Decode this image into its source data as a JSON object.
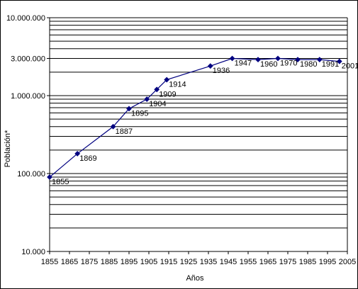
{
  "chart_data": {
    "type": "line",
    "title": "",
    "xlabel": "Años",
    "ylabel": "Población*",
    "y_scale": "log",
    "ylim": [
      10000,
      10000000
    ],
    "xlim": [
      1855,
      2005
    ],
    "x_ticks": [
      "1855",
      "1865",
      "1875",
      "1885",
      "1895",
      "1905",
      "1915",
      "1925",
      "1935",
      "1945",
      "1955",
      "1965",
      "1975",
      "1985",
      "1995",
      "2005"
    ],
    "y_tick_labels": [
      {
        "value": 10000000,
        "label": "10.000.000"
      },
      {
        "value": 3000000,
        "label": "3.000.000"
      },
      {
        "value": 1000000,
        "label": "1.000.000"
      },
      {
        "value": 100000,
        "label": "100.000"
      },
      {
        "value": 10000,
        "label": "10.000"
      }
    ],
    "grid": true,
    "legend": "none",
    "series": [
      {
        "color": "#000080",
        "points": [
          {
            "x": 1855,
            "y": 90000,
            "label": "1855"
          },
          {
            "x": 1869,
            "y": 180000,
            "label": "1869"
          },
          {
            "x": 1887,
            "y": 400000,
            "label": "1887"
          },
          {
            "x": 1895,
            "y": 680000,
            "label": "1895"
          },
          {
            "x": 1904,
            "y": 900000,
            "label": "1904"
          },
          {
            "x": 1909,
            "y": 1200000,
            "label": "1909"
          },
          {
            "x": 1914,
            "y": 1600000,
            "label": "1914"
          },
          {
            "x": 1936,
            "y": 2400000,
            "label": "1936"
          },
          {
            "x": 1947,
            "y": 3000000,
            "label": "1947"
          },
          {
            "x": 1960,
            "y": 2900000,
            "label": "1960"
          },
          {
            "x": 1970,
            "y": 3000000,
            "label": "1970"
          },
          {
            "x": 1980,
            "y": 2900000,
            "label": "1980"
          },
          {
            "x": 1991,
            "y": 2900000,
            "label": "1991"
          },
          {
            "x": 2001,
            "y": 2750000,
            "label": "2001"
          }
        ]
      }
    ]
  }
}
